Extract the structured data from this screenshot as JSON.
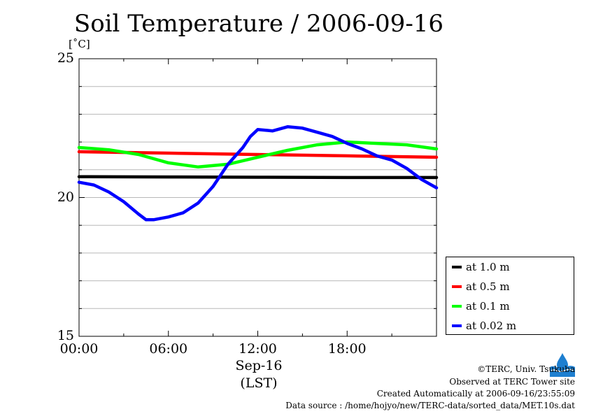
{
  "chart_data": {
    "type": "line",
    "title": "Soil Temperature / 2006-09-16",
    "ylabel": "[˚C]",
    "xlabel": "Sep-16",
    "xlabel2": "(LST)",
    "ylim": [
      15,
      25
    ],
    "xlim": [
      0,
      24
    ],
    "y_ticks": [
      15,
      20,
      25
    ],
    "x_ticks": [
      0,
      6,
      12,
      18
    ],
    "x_tick_labels": [
      "00:00",
      "06:00",
      "12:00",
      "18:00"
    ],
    "grid": true,
    "legend_position": "right-bottom",
    "series": [
      {
        "name": "at 1.0 m",
        "color": "#000000",
        "x": [
          0,
          6,
          12,
          18,
          24
        ],
        "y": [
          20.75,
          20.74,
          20.73,
          20.72,
          20.72
        ]
      },
      {
        "name": "at 0.5 m",
        "color": "#ff0000",
        "x": [
          0,
          6,
          12,
          18,
          24
        ],
        "y": [
          21.65,
          21.6,
          21.55,
          21.5,
          21.45
        ]
      },
      {
        "name": "at 0.1 m",
        "color": "#00ff00",
        "x": [
          0,
          2,
          4,
          6,
          8,
          10,
          12,
          14,
          16,
          18,
          20,
          22,
          24
        ],
        "y": [
          21.8,
          21.72,
          21.55,
          21.25,
          21.1,
          21.2,
          21.45,
          21.7,
          21.9,
          22.0,
          21.95,
          21.9,
          21.75
        ]
      },
      {
        "name": "at 0.02 m",
        "color": "#0000ff",
        "x": [
          0,
          1,
          2,
          3,
          4,
          4.5,
          5,
          6,
          7,
          8,
          9,
          10,
          11,
          11.5,
          12,
          13,
          14,
          15,
          16,
          17,
          18,
          19,
          20,
          21,
          22,
          23,
          24
        ],
        "y": [
          20.55,
          20.45,
          20.2,
          19.85,
          19.4,
          19.2,
          19.2,
          19.3,
          19.45,
          19.8,
          20.4,
          21.2,
          21.8,
          22.2,
          22.45,
          22.4,
          22.55,
          22.5,
          22.35,
          22.2,
          21.95,
          21.75,
          21.5,
          21.35,
          21.05,
          20.65,
          20.35
        ]
      }
    ]
  },
  "footer": {
    "copyright": "©TERC, Univ. Tsukuba",
    "observed": "Observed at TERC Tower site",
    "created": "Created Automatically at 2006-09-16/23:55:09",
    "source": "Data source : /home/hojyo/new/TERC-data/sorted_data/MET.10s.dat"
  }
}
